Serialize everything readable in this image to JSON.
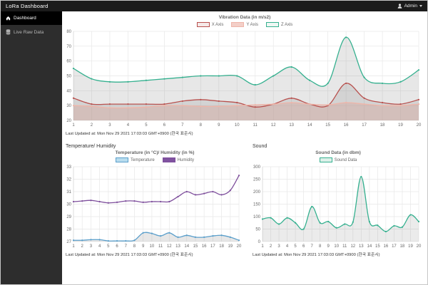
{
  "header": {
    "brand": "LoRa Dashboard",
    "user_label": "Admin",
    "icons": {
      "user": "user-icon",
      "caret": "caret-down-icon"
    }
  },
  "sidebar": {
    "items": [
      {
        "label": "Dashboard",
        "icon": "home-icon",
        "active": true
      },
      {
        "label": "Live Raw Data",
        "icon": "database-icon",
        "active": false
      }
    ]
  },
  "colors": {
    "header_bg": "#1b1b1b",
    "sidebar_bg": "#2d2d2d",
    "sidebar_active_bg": "#000000",
    "accent_red": "#b8504d",
    "accent_pink": "#efb5a9",
    "accent_green": "#35b08f",
    "accent_blue": "#5b9fcb",
    "accent_purple": "#7e4f9c"
  },
  "chart_data": [
    {
      "type": "line",
      "title": "Vibration Data (in m/s2)",
      "x": [
        1,
        2,
        3,
        4,
        5,
        6,
        7,
        8,
        9,
        10,
        11,
        12,
        13,
        14,
        15,
        16,
        17,
        18,
        19,
        20
      ],
      "ylim": [
        20,
        80
      ],
      "yticks": [
        20,
        30,
        40,
        50,
        60,
        70,
        80
      ],
      "grid": true,
      "legend_position": "top",
      "series": [
        {
          "name": "X Axis",
          "color": "#b8504d",
          "legend_fill": "#f5e9e8",
          "fill": "rgba(120,120,120,0.18)",
          "values": [
            35,
            31,
            31,
            31,
            31,
            31,
            33,
            34,
            33,
            32,
            29,
            31,
            35,
            31,
            30,
            45,
            35,
            32,
            31,
            34
          ]
        },
        {
          "name": "Y Axis",
          "color": "#efb5a9",
          "legend_fill": "#f3cfc8",
          "fill": "rgba(231,178,166,0.45)",
          "values": [
            30,
            29.5,
            28.5,
            28.5,
            29,
            30,
            30,
            29.5,
            29.5,
            30,
            30.5,
            31,
            32,
            31,
            30.5,
            32,
            31,
            30,
            30,
            31
          ]
        },
        {
          "name": "Z Axis",
          "color": "#35b08f",
          "legend_fill": "#eef7f3",
          "fill": "rgba(120,120,120,0.18)",
          "values": [
            55,
            48,
            46,
            46,
            47,
            48,
            49,
            50,
            50,
            50,
            44,
            50,
            56,
            47,
            45,
            76,
            49,
            45,
            46,
            54
          ]
        }
      ],
      "last_updated": "Last Updated at: Mon Nov 29 2021 17:03:03 GMT+0900 (한국 표준시)"
    },
    {
      "type": "line",
      "section_heading": "Temperature/ Humidity",
      "title": "Temperature (in °C)/ Humidity (in %)",
      "x": [
        1,
        2,
        3,
        4,
        5,
        6,
        7,
        8,
        9,
        10,
        11,
        12,
        13,
        14,
        15,
        16,
        17,
        18,
        19,
        20
      ],
      "ylim": [
        27,
        33
      ],
      "yticks": [
        27,
        28,
        29,
        30,
        31,
        32,
        33
      ],
      "grid": true,
      "legend_position": "top",
      "series": [
        {
          "name": "Temperature",
          "color": "#5b9fcb",
          "legend_fill": "#b8dcee",
          "fill": "rgba(120,120,120,0.18)",
          "values": [
            27.1,
            27.1,
            27.15,
            27.15,
            27.05,
            27.05,
            27.05,
            27.1,
            27.7,
            27.65,
            27.45,
            27.7,
            27.35,
            27.5,
            27.35,
            27.35,
            27.45,
            27.5,
            27.35,
            27.1
          ]
        },
        {
          "name": "Humidity",
          "color": "#7e4f9c",
          "legend_fill": "#8053a0",
          "fill": "none",
          "values": [
            30.2,
            30.25,
            30.3,
            30.2,
            30.1,
            30.15,
            30.25,
            30.25,
            30.15,
            30.2,
            30.2,
            30.2,
            30.6,
            31.0,
            30.75,
            30.85,
            31.0,
            30.75,
            31.1,
            32.3
          ]
        }
      ],
      "last_updated": "Last Updated at: Mon Nov 29 2021 17:03:03 GMT+0900 (한국 표준시)"
    },
    {
      "type": "line",
      "section_heading": "Sound",
      "title": "Sound Data (in dbm)",
      "x": [
        1,
        2,
        3,
        4,
        5,
        6,
        7,
        8,
        9,
        10,
        11,
        12,
        13,
        14,
        15,
        16,
        17,
        18,
        19,
        20
      ],
      "ylim": [
        0,
        300
      ],
      "yticks": [
        0,
        50,
        100,
        150,
        200,
        250,
        300
      ],
      "grid": true,
      "legend_position": "top",
      "series": [
        {
          "name": "Sound Data",
          "color": "#35b08f",
          "legend_fill": "#ddf0e9",
          "fill": "rgba(120,120,120,0.15)",
          "values": [
            90,
            95,
            70,
            95,
            75,
            50,
            140,
            75,
            80,
            55,
            70,
            78,
            260,
            80,
            65,
            40,
            63,
            58,
            107,
            80
          ]
        }
      ],
      "last_updated": "Last Updated at: Mon Nov 29 2021 17:03:03 GMT+0900 (한국 표준시)"
    }
  ]
}
